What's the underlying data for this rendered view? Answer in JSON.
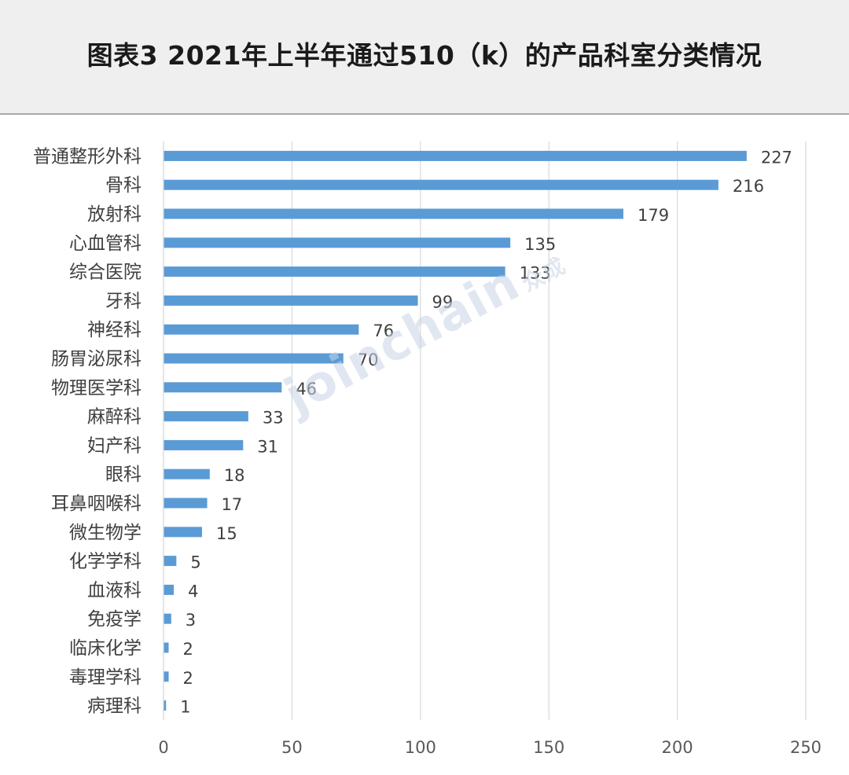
{
  "header": {
    "title": "图表3  2021年上半年通过510（k）的产品科室分类情况"
  },
  "watermark": {
    "text": "joinchain",
    "sub": "众成"
  },
  "colors": {
    "bar": "#5b9bd5",
    "grid": "#d9d9d9",
    "axis_text": "#595959",
    "label_text": "#404040"
  },
  "chart_data": {
    "type": "bar",
    "orientation": "horizontal",
    "categories": [
      "普通整形外科",
      "骨科",
      "放射科",
      "心血管科",
      "综合医院",
      "牙科",
      "神经科",
      "肠胃泌尿科",
      "物理医学科",
      "麻醉科",
      "妇产科",
      "眼科",
      "耳鼻咽喉科",
      "微生物学",
      "化学学科",
      "血液科",
      "免疫学",
      "临床化学",
      "毒理学科",
      "病理科"
    ],
    "values": [
      227,
      216,
      179,
      135,
      133,
      99,
      76,
      70,
      46,
      33,
      31,
      18,
      17,
      15,
      5,
      4,
      3,
      2,
      2,
      1
    ],
    "xlim": [
      0,
      250
    ],
    "xticks": [
      0,
      50,
      100,
      150,
      200,
      250
    ],
    "grid": "vertical",
    "data_labels": true,
    "title": "",
    "xlabel": "",
    "ylabel": ""
  }
}
